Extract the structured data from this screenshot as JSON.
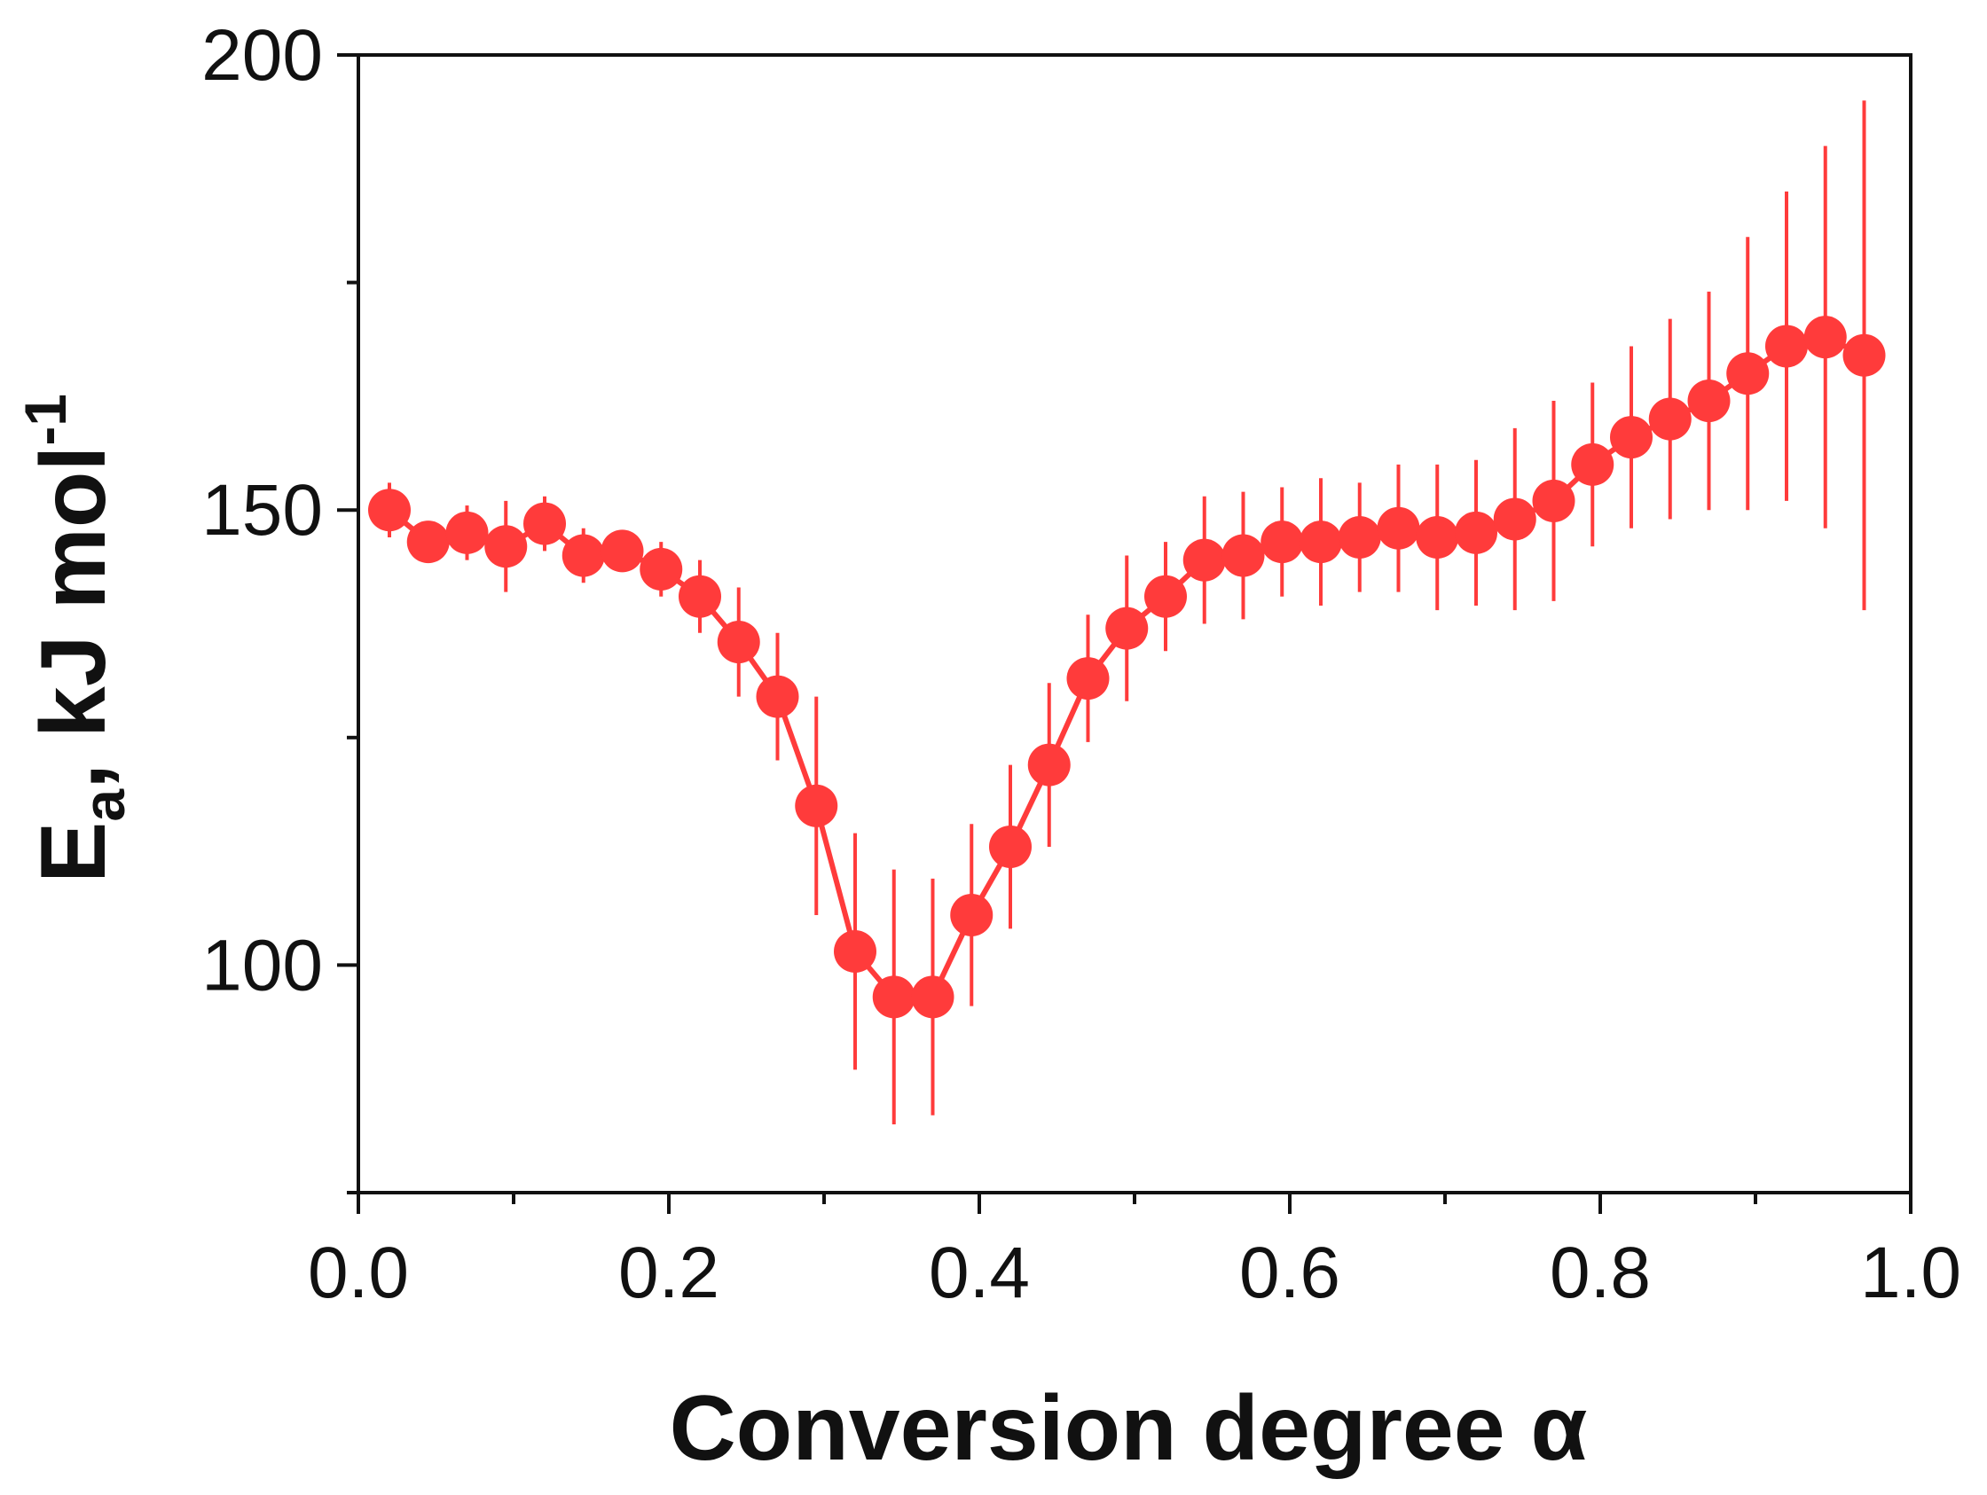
{
  "chart_data": {
    "type": "scatter",
    "title": "",
    "xlabel": "Conversion degree α",
    "ylabel": {
      "main": "E",
      "subscript": "a",
      "rest": ", kJ mol",
      "superscript": "-1"
    },
    "xlim": [
      0.0,
      1.0
    ],
    "ylim": [
      75,
      200
    ],
    "x_ticks": [
      "0.0",
      "0.2",
      "0.4",
      "0.6",
      "0.8",
      "1.0"
    ],
    "x_tick_values": [
      0.0,
      0.2,
      0.4,
      0.6,
      0.8,
      1.0
    ],
    "y_ticks": [
      "100",
      "150",
      "200"
    ],
    "y_tick_values": [
      100,
      150,
      200
    ],
    "y_minor_tick_values": [
      75,
      125,
      175
    ],
    "x_minor_tick_values": [
      0.1,
      0.3,
      0.5,
      0.7,
      0.9
    ],
    "grid": false,
    "legend": "none",
    "color": "#ff3b3b",
    "series": [
      {
        "connected": true,
        "x": [
          0.02,
          0.045,
          0.07,
          0.095,
          0.12,
          0.145,
          0.17,
          0.195,
          0.22,
          0.245,
          0.27,
          0.295,
          0.32,
          0.345,
          0.37,
          0.395,
          0.42,
          0.445,
          0.47,
          0.495,
          0.52,
          0.545,
          0.57,
          0.595,
          0.62,
          0.645,
          0.67,
          0.695,
          0.72,
          0.745,
          0.77,
          0.795,
          0.82,
          0.845,
          0.87,
          0.895,
          0.92,
          0.945,
          0.97
        ],
        "y": [
          150,
          146.5,
          147.5,
          146,
          148.5,
          145,
          145.5,
          143.5,
          140.5,
          135.5,
          129.5,
          117.5,
          101.5,
          96.5,
          96.5,
          105.5,
          113,
          122,
          131.5,
          137,
          140.5,
          144.5,
          145,
          146.5,
          146.5,
          147,
          148,
          147,
          147.5,
          149,
          151,
          155,
          158,
          160,
          162,
          165,
          168,
          169,
          167
        ],
        "error": [
          3,
          2,
          3,
          5,
          3,
          3,
          2,
          3,
          4,
          6,
          7,
          12,
          13,
          14,
          13,
          10,
          9,
          9,
          7,
          8,
          6,
          7,
          7,
          6,
          7,
          6,
          7,
          8,
          8,
          10,
          11,
          9,
          10,
          11,
          12,
          15,
          17,
          21,
          28
        ]
      }
    ]
  }
}
